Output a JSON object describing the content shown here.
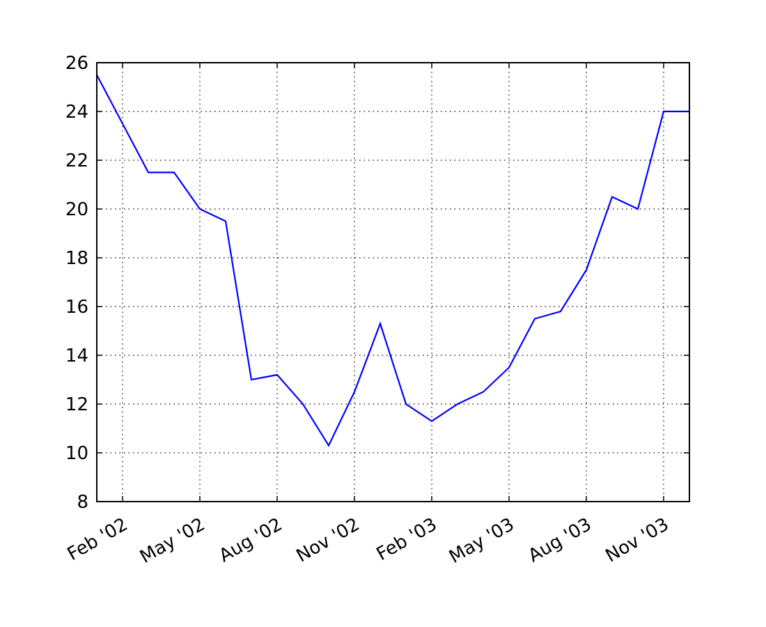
{
  "chart_data": {
    "type": "line",
    "x": [
      "2002-01",
      "2002-02",
      "2002-03",
      "2002-04",
      "2002-05",
      "2002-06",
      "2002-07",
      "2002-08",
      "2002-09",
      "2002-10",
      "2002-11",
      "2002-12",
      "2003-01",
      "2003-02",
      "2003-03",
      "2003-04",
      "2003-05",
      "2003-06",
      "2003-07",
      "2003-08",
      "2003-09",
      "2003-10",
      "2003-11",
      "2003-12"
    ],
    "values": [
      25.5,
      23.5,
      21.5,
      21.5,
      20,
      19.5,
      13,
      13.2,
      12,
      10.3,
      12.5,
      15.3,
      12,
      11.3,
      12,
      12.5,
      13.5,
      15.5,
      15.8,
      17.5,
      20.5,
      20,
      24,
      24
    ],
    "color": "#0000ff",
    "xlim": [
      "2002-01",
      "2003-12"
    ],
    "xticks": [
      {
        "value": "2002-02",
        "label": "Feb '02"
      },
      {
        "value": "2002-05",
        "label": "May '02"
      },
      {
        "value": "2002-08",
        "label": "Aug '02"
      },
      {
        "value": "2002-11",
        "label": "Nov '02"
      },
      {
        "value": "2003-02",
        "label": "Feb '03"
      },
      {
        "value": "2003-05",
        "label": "May '03"
      },
      {
        "value": "2003-08",
        "label": "Aug '03"
      },
      {
        "value": "2003-11",
        "label": "Nov '03"
      }
    ],
    "ylim": [
      8,
      26
    ],
    "yticks": [
      8,
      10,
      12,
      14,
      16,
      18,
      20,
      22,
      24,
      26
    ],
    "grid": true
  }
}
